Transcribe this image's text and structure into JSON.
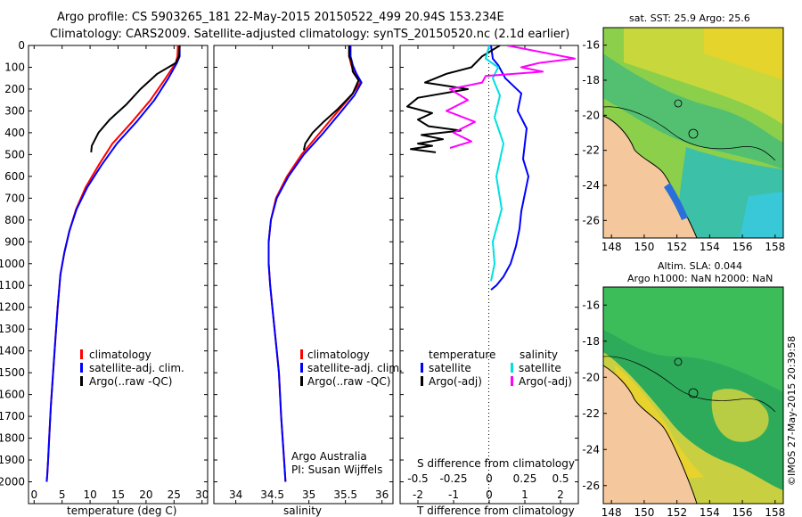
{
  "header": {
    "line1": "Argo profile: CS 5903265_181 22-May-2015 20150522_499 20.94S 153.234E",
    "line2": "Climatology: CARS2009. Satellite-adjusted climatology: synTS_20150520.nc (2.1d earlier)"
  },
  "footer": {
    "institution": "Argo Australia",
    "pi": "PI: Susan Wijffels",
    "stamp": "©IMOS 27-May-2015 20:39:58"
  },
  "legends": {
    "profile": [
      "climatology",
      "satellite-adj. clim.",
      "Argo(..raw -QC)"
    ],
    "difference": {
      "temp_header": "temperature",
      "sal_header": "salinity",
      "temp_entries": [
        "satellite",
        "Argo(-adj)"
      ],
      "sal_entries": [
        "satellite",
        "Argo(-adj)"
      ]
    }
  },
  "colors": {
    "climatology": "#ff0000",
    "satellite_adj": "#0000ff",
    "argo": "#000000",
    "sal_satellite": "#00e0e0",
    "sal_argo": "#ff00ff",
    "land": "#f4c89c"
  },
  "maps": {
    "sst_title": "sat. SST: 25.9  Argo: 25.6",
    "sla_title1": "Altim. SLA: 0.044",
    "sla_title2": "Argo h1000: NaN h2000: NaN",
    "lat_ticks": [
      -16,
      -18,
      -20,
      -22,
      -24,
      -26
    ],
    "lon_ticks": [
      148,
      150,
      152,
      154,
      156,
      158
    ],
    "lat_range": [
      -15,
      -27
    ],
    "lon_range": [
      147.5,
      158.5
    ]
  },
  "chart_data": [
    {
      "type": "line",
      "title": "",
      "xlabel": "temperature (deg C)",
      "ylabel": "",
      "xlim": [
        -1,
        31
      ],
      "ylim": [
        2100,
        0
      ],
      "xticks": [
        0,
        5,
        10,
        15,
        20,
        25,
        30
      ],
      "yticks": [
        0,
        100,
        200,
        300,
        400,
        500,
        600,
        700,
        800,
        900,
        1000,
        1100,
        1200,
        1300,
        1400,
        1500,
        1600,
        1700,
        1800,
        1900,
        2000
      ],
      "series": [
        {
          "name": "climatology",
          "x": [
            25.7,
            25.6,
            25.3,
            23.5,
            20.8,
            17.5,
            14.0,
            11.5,
            9.2,
            7.5,
            6.3,
            5.4,
            4.7,
            4.2,
            3.8,
            3.4,
            3.0,
            2.7,
            2.5,
            2.35,
            2.25
          ],
          "y": [
            0,
            50,
            80,
            150,
            250,
            350,
            450,
            550,
            650,
            750,
            850,
            950,
            1050,
            1200,
            1350,
            1500,
            1650,
            1800,
            1900,
            1970,
            2000
          ]
        },
        {
          "name": "satellite-adj. clim.",
          "x": [
            26.0,
            26.0,
            25.5,
            24.0,
            21.5,
            18.3,
            14.8,
            12.0,
            9.5,
            7.6,
            6.3,
            5.4,
            4.7,
            4.2,
            3.8,
            3.4,
            3.0,
            2.7,
            2.5,
            2.35,
            2.25
          ],
          "y": [
            0,
            50,
            80,
            150,
            250,
            350,
            450,
            550,
            650,
            750,
            850,
            950,
            1050,
            1200,
            1350,
            1500,
            1650,
            1800,
            1900,
            1970,
            2000
          ]
        },
        {
          "name": "Argo(..raw -QC)",
          "x": [
            26.0,
            25.9,
            25.3,
            22.0,
            19.0,
            16.5,
            13.5,
            11.5,
            10.3,
            10.2
          ],
          "y": [
            0,
            50,
            80,
            130,
            200,
            270,
            340,
            400,
            460,
            490
          ]
        }
      ]
    },
    {
      "type": "line",
      "title": "",
      "xlabel": "salinity",
      "ylabel": "",
      "xlim": [
        33.7,
        36.15
      ],
      "ylim": [
        2100,
        0
      ],
      "xticks": [
        34,
        34.5,
        35,
        35.5,
        36
      ],
      "series": [
        {
          "name": "climatology",
          "x": [
            35.55,
            35.55,
            35.58,
            35.63,
            35.7,
            35.58,
            35.35,
            35.15,
            34.9,
            34.7,
            34.55,
            34.48,
            34.45,
            34.45,
            34.47,
            34.5,
            34.53,
            34.56,
            34.59,
            34.62,
            34.66,
            34.68
          ],
          "y": [
            0,
            50,
            90,
            130,
            170,
            230,
            320,
            400,
            500,
            600,
            700,
            800,
            900,
            1000,
            1100,
            1200,
            1300,
            1400,
            1500,
            1700,
            1900,
            2000
          ]
        },
        {
          "name": "satellite-adj. clim.",
          "x": [
            35.57,
            35.57,
            35.6,
            35.65,
            35.72,
            35.62,
            35.4,
            35.2,
            34.93,
            34.72,
            34.56,
            34.48,
            34.45,
            34.45,
            34.47,
            34.5,
            34.53,
            34.56,
            34.59,
            34.62,
            34.66,
            34.68
          ],
          "y": [
            0,
            50,
            90,
            130,
            170,
            230,
            320,
            400,
            500,
            600,
            700,
            800,
            900,
            1000,
            1100,
            1200,
            1300,
            1400,
            1500,
            1700,
            1900,
            2000
          ]
        },
        {
          "name": "Argo(..raw -QC)",
          "x": [
            35.55,
            35.55,
            35.58,
            35.6,
            35.68,
            35.6,
            35.4,
            35.2,
            35.05,
            34.95,
            34.93
          ],
          "y": [
            0,
            50,
            70,
            120,
            160,
            220,
            290,
            350,
            400,
            450,
            480
          ]
        }
      ]
    },
    {
      "type": "line",
      "title": "",
      "xlabel": "T difference from climatology",
      "x2label": "S difference from climatology",
      "ylabel": "",
      "xlim": [
        -2.5,
        2.5
      ],
      "ylim": [
        2100,
        0
      ],
      "xticks": [
        -2,
        -1,
        0,
        1,
        2
      ],
      "top_ticks": [
        "-0.5",
        "-0.25",
        "0",
        "0.25",
        "0.5"
      ],
      "series": [
        {
          "name": "temperature satellite",
          "x": [
            0.05,
            0.1,
            0.25,
            0.45,
            0.9,
            0.8,
            1.05,
            1.0,
            0.95,
            1.1,
            1.0,
            0.9,
            0.85,
            0.75,
            0.6,
            0.4,
            0.2,
            0.05
          ],
          "y": [
            0,
            60,
            90,
            150,
            220,
            300,
            380,
            450,
            520,
            600,
            680,
            760,
            840,
            920,
            1000,
            1060,
            1100,
            1120
          ]
        },
        {
          "name": "temperature Argo(-adj)",
          "x": [
            0.3,
            -0.2,
            -0.5,
            -1.2,
            -1.8,
            -0.6,
            -2.0,
            -2.3,
            -1.6,
            -2.0,
            -1.7,
            -0.8,
            -1.9,
            -1.3,
            -2.0,
            -1.6,
            -2.2,
            -1.5
          ],
          "y": [
            0,
            50,
            100,
            130,
            170,
            200,
            240,
            280,
            310,
            340,
            370,
            390,
            410,
            430,
            450,
            460,
            475,
            490
          ]
        },
        {
          "name": "salinity satellite",
          "x": [
            0.0,
            -0.1,
            0.25,
            0.1,
            0.3,
            0.15,
            0.4,
            0.2,
            0.35,
            0.1,
            0.15,
            0.05
          ],
          "y": [
            0,
            60,
            100,
            150,
            230,
            330,
            450,
            600,
            750,
            900,
            1000,
            1080
          ]
        },
        {
          "name": "salinity Argo(-adj)",
          "x": [
            0.5,
            2.4,
            1.4,
            0.9,
            1.5,
            -0.1,
            -0.2,
            -1.1,
            -0.6,
            -1.2,
            -0.4,
            -1.0,
            -0.5,
            -1.1
          ],
          "y": [
            0,
            60,
            80,
            100,
            120,
            140,
            170,
            200,
            250,
            300,
            350,
            400,
            440,
            470
          ]
        }
      ]
    }
  ]
}
